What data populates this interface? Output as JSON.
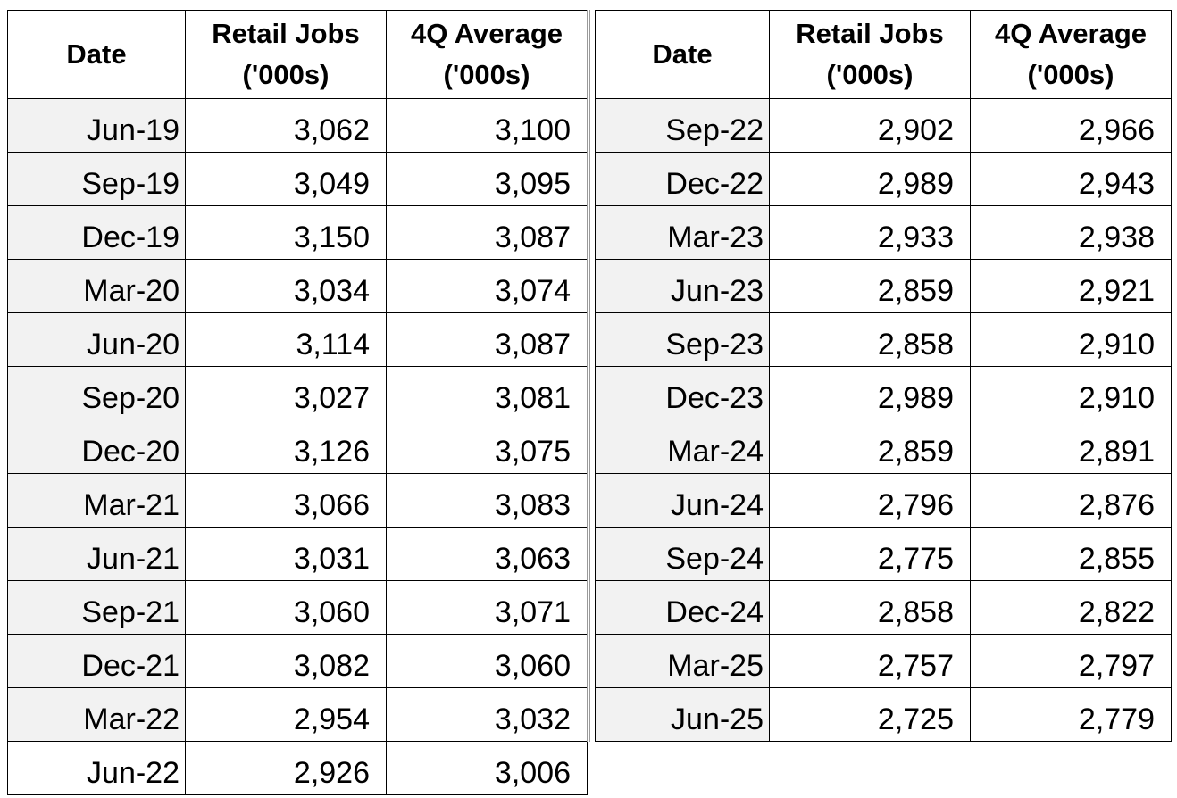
{
  "headers": {
    "date": "Date",
    "retail": [
      "Retail Jobs",
      "('000s)"
    ],
    "avg": [
      "4Q Average",
      "('000s)"
    ]
  },
  "left_rows": [
    {
      "date": "Jun-19",
      "retail": "3,062",
      "avg": "3,100"
    },
    {
      "date": "Sep-19",
      "retail": "3,049",
      "avg": "3,095"
    },
    {
      "date": "Dec-19",
      "retail": "3,150",
      "avg": "3,087"
    },
    {
      "date": "Mar-20",
      "retail": "3,034",
      "avg": "3,074"
    },
    {
      "date": "Jun-20",
      "retail": "3,114",
      "avg": "3,087"
    },
    {
      "date": "Sep-20",
      "retail": "3,027",
      "avg": "3,081"
    },
    {
      "date": "Dec-20",
      "retail": "3,126",
      "avg": "3,075"
    },
    {
      "date": "Mar-21",
      "retail": "3,066",
      "avg": "3,083"
    },
    {
      "date": "Jun-21",
      "retail": "3,031",
      "avg": "3,063"
    },
    {
      "date": "Sep-21",
      "retail": "3,060",
      "avg": "3,071"
    },
    {
      "date": "Dec-21",
      "retail": "3,082",
      "avg": "3,060"
    },
    {
      "date": "Mar-22",
      "retail": "2,954",
      "avg": "3,032"
    },
    {
      "date": "Jun-22",
      "retail": "2,926",
      "avg": "3,006"
    }
  ],
  "right_rows": [
    {
      "date": "Sep-22",
      "retail": "2,902",
      "avg": "2,966"
    },
    {
      "date": "Dec-22",
      "retail": "2,989",
      "avg": "2,943"
    },
    {
      "date": "Mar-23",
      "retail": "2,933",
      "avg": "2,938"
    },
    {
      "date": "Jun-23",
      "retail": "2,859",
      "avg": "2,921"
    },
    {
      "date": "Sep-23",
      "retail": "2,858",
      "avg": "2,910"
    },
    {
      "date": "Dec-23",
      "retail": "2,989",
      "avg": "2,910"
    },
    {
      "date": "Mar-24",
      "retail": "2,859",
      "avg": "2,891"
    },
    {
      "date": "Jun-24",
      "retail": "2,796",
      "avg": "2,876"
    },
    {
      "date": "Sep-24",
      "retail": "2,775",
      "avg": "2,855"
    },
    {
      "date": "Dec-24",
      "retail": "2,858",
      "avg": "2,822"
    },
    {
      "date": "Mar-25",
      "retail": "2,757",
      "avg": "2,797"
    },
    {
      "date": "Jun-25",
      "retail": "2,725",
      "avg": "2,779"
    }
  ],
  "colors": {
    "date_cell_bg": "#f2f2f2",
    "border": "#000000"
  }
}
